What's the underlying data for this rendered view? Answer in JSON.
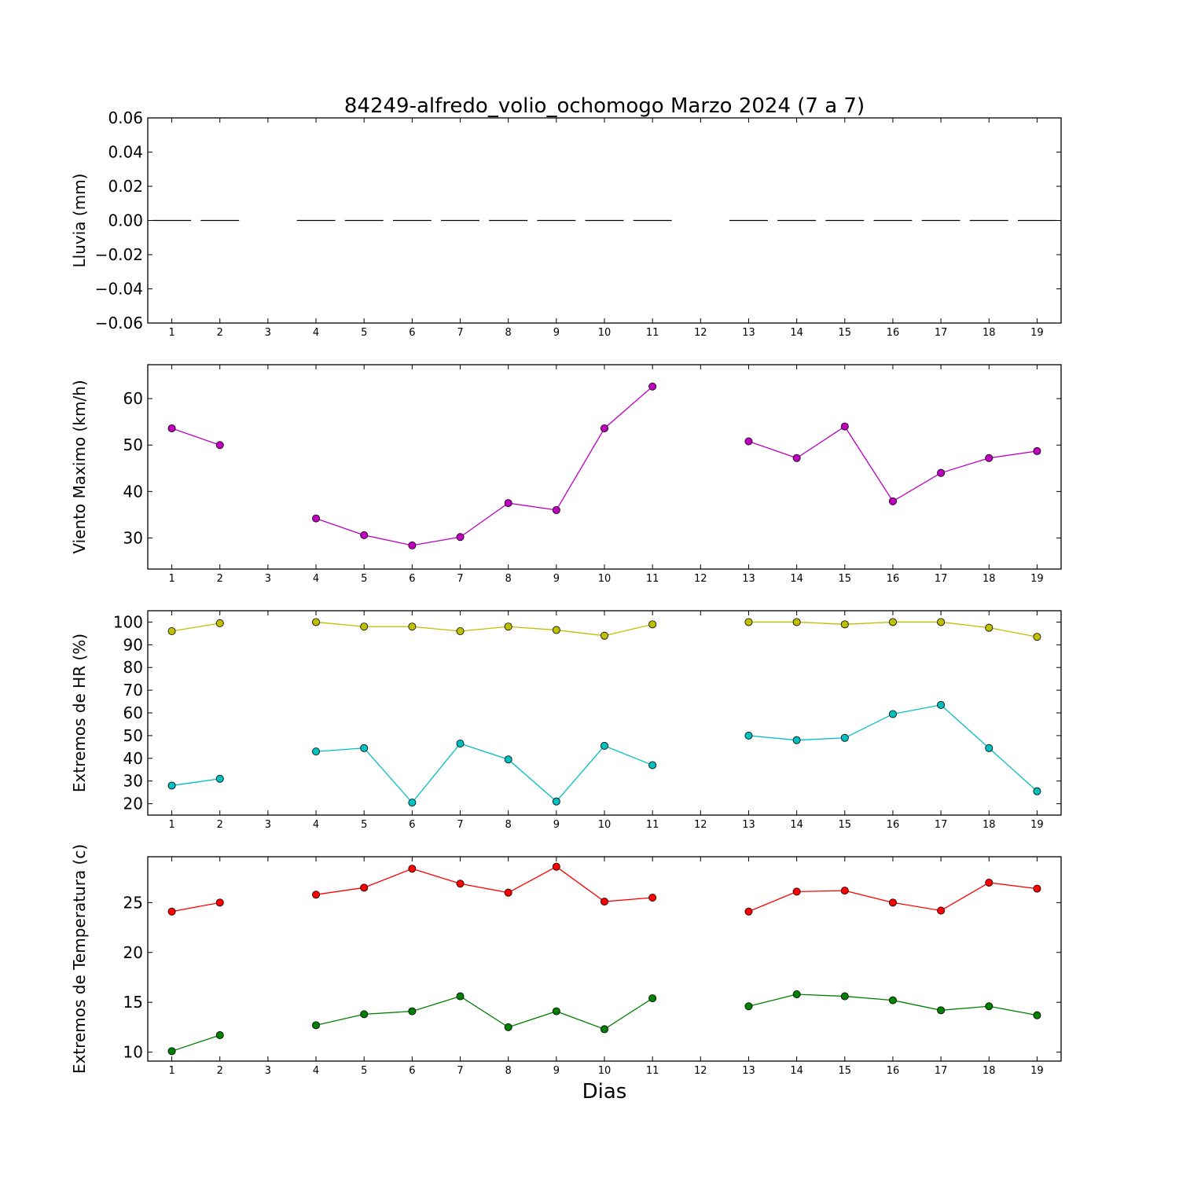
{
  "chart_data": {
    "title": "84249-alfredo_volio_ochomogo Marzo 2024  (7 a 7)",
    "xlabel": "Dias",
    "days": [
      1,
      2,
      3,
      4,
      5,
      6,
      7,
      8,
      9,
      10,
      11,
      12,
      13,
      14,
      15,
      16,
      17,
      18,
      19
    ],
    "panels": [
      {
        "type": "bar",
        "ylabel": "Lluvia (mm)",
        "ylim": [
          -0.06,
          0.06
        ],
        "yticks": [
          0.06,
          0.04,
          0.02,
          0.0,
          -0.02,
          -0.04,
          -0.06
        ],
        "ytick_labels": [
          "0.06",
          "0.04",
          "0.02",
          "0.00",
          "−0.02",
          "−0.04",
          "−0.06"
        ],
        "series": [
          {
            "color": "#000000",
            "values": [
              0,
              0,
              null,
              0,
              0,
              0,
              0,
              0,
              0,
              0,
              0,
              null,
              0,
              0,
              0,
              0,
              0,
              0,
              0
            ]
          }
        ]
      },
      {
        "type": "line",
        "ylabel": "Viento Maximo (km/h)",
        "ylim": [
          23.3,
          67.3
        ],
        "yticks": [
          30,
          40,
          50,
          60
        ],
        "ytick_labels": [
          "30",
          "40",
          "50",
          "60"
        ],
        "series": [
          {
            "color": "#bf00bf",
            "values": [
              53.6,
              50.0,
              null,
              34.2,
              30.6,
              28.4,
              30.2,
              37.5,
              36.0,
              53.6,
              62.6,
              null,
              50.8,
              47.2,
              54.0,
              37.9,
              44.0,
              47.2,
              48.7
            ]
          }
        ]
      },
      {
        "type": "line",
        "ylabel": "Extremos de HR (%)",
        "ylim": [
          15,
          105
        ],
        "yticks": [
          20,
          30,
          40,
          50,
          60,
          70,
          80,
          90,
          100
        ],
        "ytick_labels": [
          "20",
          "30",
          "40",
          "50",
          "60",
          "70",
          "80",
          "90",
          "100"
        ],
        "series": [
          {
            "color": "#bfbf00",
            "values": [
              96,
              99.5,
              null,
              100,
              98,
              98,
              96,
              98,
              96.5,
              94,
              99,
              null,
              100,
              100,
              99,
              100,
              100,
              97.5,
              93.5
            ]
          },
          {
            "color": "#00bfbf",
            "values": [
              28,
              31,
              null,
              43,
              44.5,
              20.5,
              46.5,
              39.5,
              21,
              45.5,
              37,
              null,
              50,
              48,
              49,
              59.5,
              63.5,
              44.5,
              25.5
            ]
          }
        ]
      },
      {
        "type": "line",
        "ylabel": "Extremos de Temperatura (c)",
        "ylim": [
          9.1,
          29.6
        ],
        "yticks": [
          10,
          15,
          20,
          25
        ],
        "ytick_labels": [
          "10",
          "15",
          "20",
          "25"
        ],
        "series": [
          {
            "color": "#ff0000",
            "values": [
              24.1,
              25.0,
              null,
              25.8,
              26.5,
              28.4,
              26.9,
              26.0,
              28.6,
              25.1,
              25.5,
              null,
              24.1,
              26.1,
              26.2,
              25.0,
              24.2,
              27.0,
              26.4
            ]
          },
          {
            "color": "#008000",
            "values": [
              10.1,
              11.7,
              null,
              12.7,
              13.8,
              14.1,
              15.6,
              12.5,
              14.1,
              12.3,
              15.4,
              null,
              14.6,
              15.8,
              15.6,
              15.2,
              14.2,
              14.6,
              13.7
            ]
          }
        ]
      }
    ]
  }
}
